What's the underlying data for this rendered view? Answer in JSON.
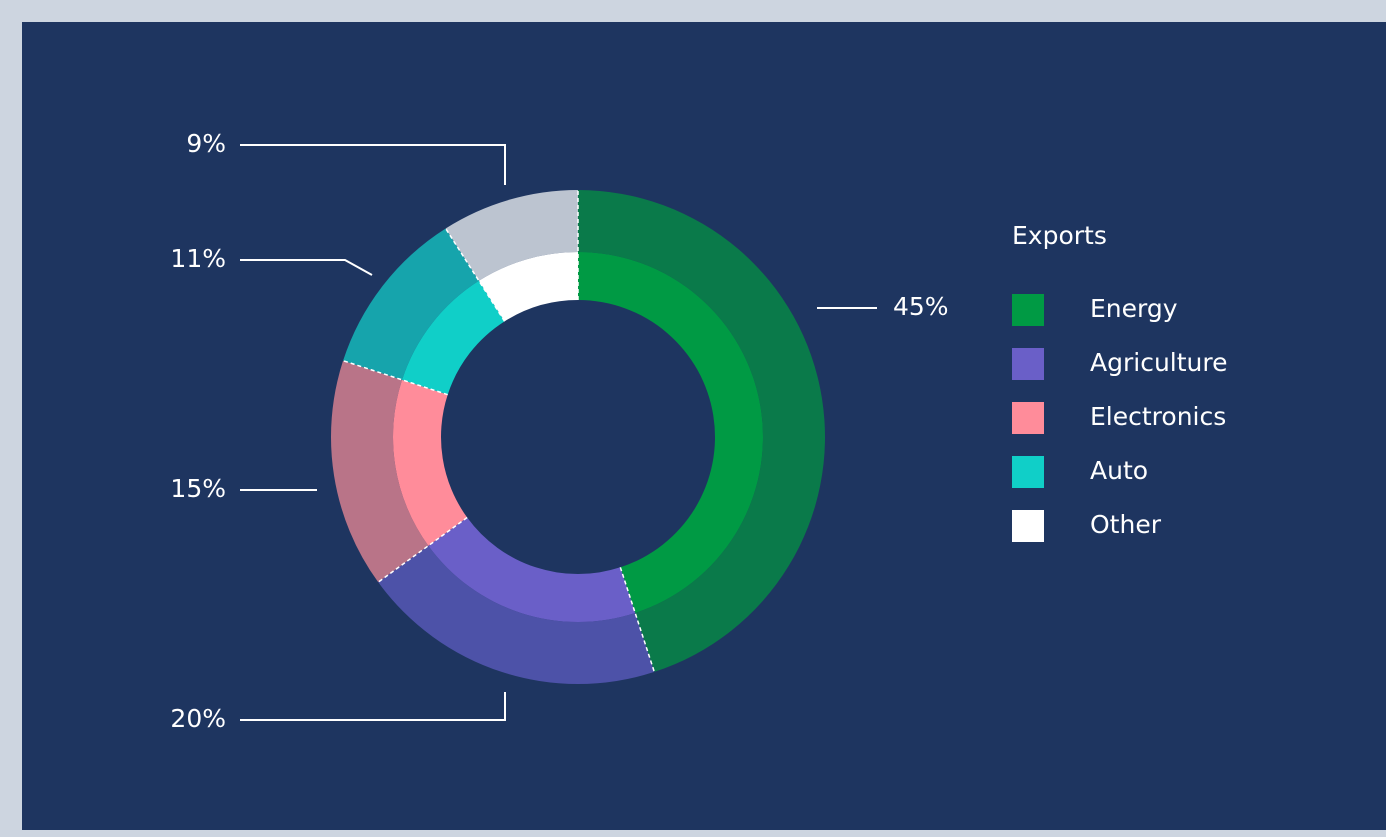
{
  "chart_data": {
    "type": "donut",
    "legend_title": "Exports",
    "categories": [
      "Energy",
      "Agriculture",
      "Electronics",
      "Auto",
      "Other"
    ],
    "values": [
      45,
      20,
      15,
      11,
      9
    ],
    "value_labels": [
      "45%",
      "20%",
      "15%",
      "11%",
      "9%"
    ],
    "colors": [
      "#009a44",
      "#6a5fc8",
      "#ff8c9a",
      "#10cfc8",
      "#ffffff"
    ],
    "outer_colors": [
      "#0a7a4a",
      "#4d52a8",
      "#b97488",
      "#16a4ac",
      "#bcc4d0"
    ]
  }
}
